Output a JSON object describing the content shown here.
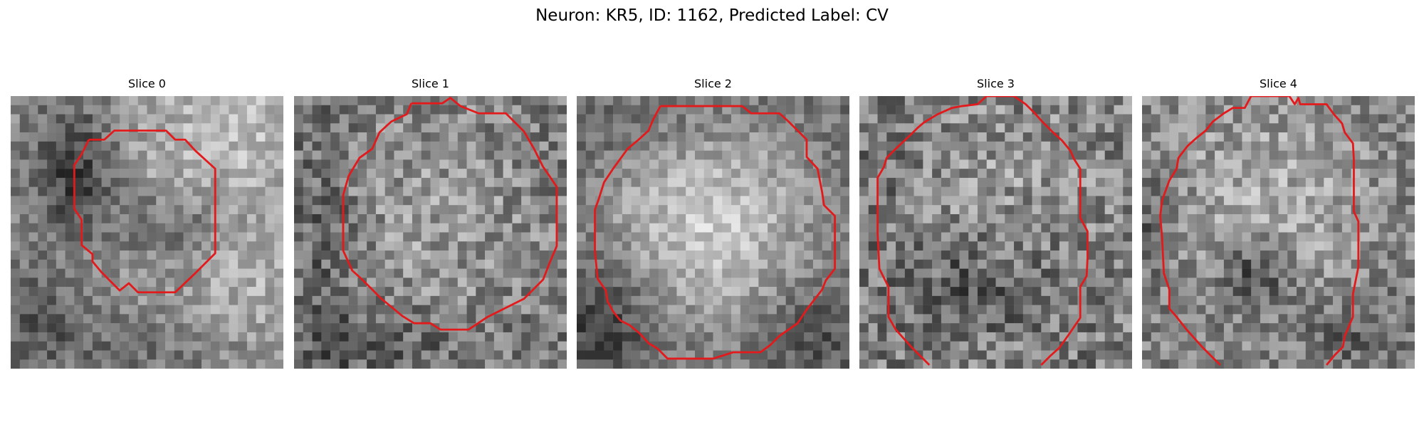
{
  "figure": {
    "title": "Neuron: KR5, ID: 1162, Predicted Label: CV"
  },
  "slices": [
    {
      "title": "Slice 0"
    },
    {
      "title": "Slice 1"
    },
    {
      "title": "Slice 2"
    },
    {
      "title": "Slice 3"
    },
    {
      "title": "Slice 4"
    }
  ],
  "colors": {
    "contour": "#e31a1c"
  }
}
